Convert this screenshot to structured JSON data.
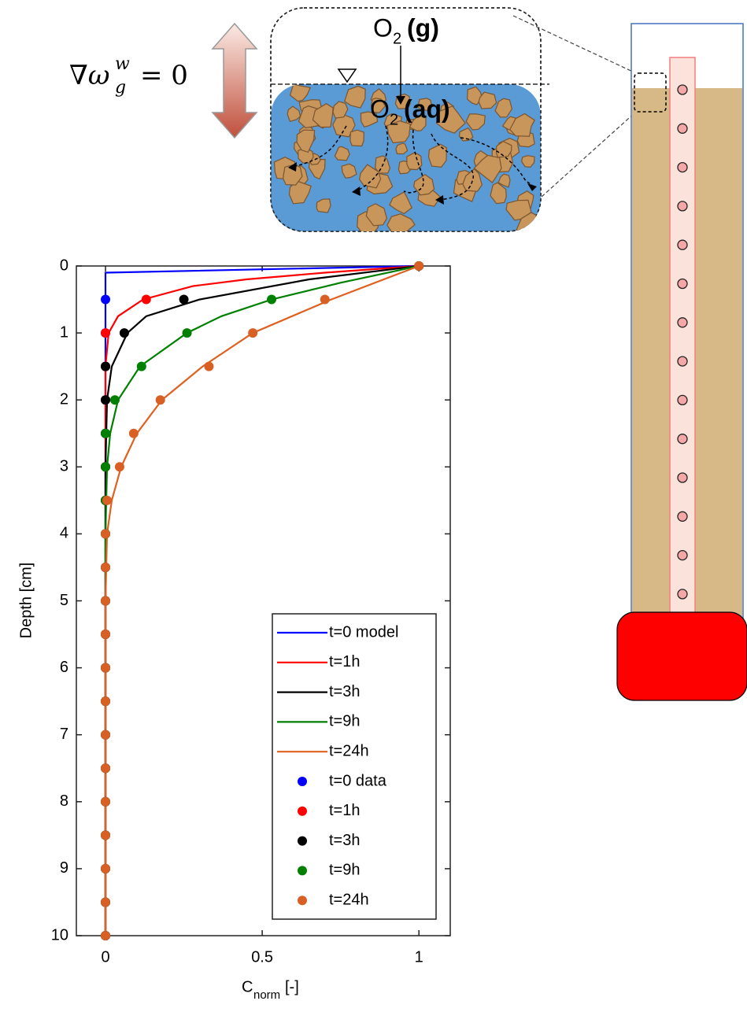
{
  "diagram": {
    "gas_label": {
      "base": "O",
      "sub": "2",
      "tail": "(g)"
    },
    "aq_label": {
      "base": "O",
      "sub": "2",
      "tail": "(aq)"
    },
    "equation": {
      "base": "∇ω",
      "sub": "g",
      "sup": "w",
      "tail": "= 0"
    }
  },
  "chart_data": {
    "type": "line",
    "ylabel": "Depth [cm]",
    "xlabel": {
      "base": "C",
      "sub": "norm",
      "tail": "[-]"
    },
    "xlim": [
      -0.093,
      1.1
    ],
    "xticks": [
      0,
      0.5,
      1
    ],
    "ylim": [
      0,
      10
    ],
    "yticks": [
      0,
      1,
      2,
      3,
      4,
      5,
      6,
      7,
      8,
      9,
      10
    ],
    "y_inverted": true,
    "grid": false,
    "legend": "lower-right",
    "series": [
      {
        "name": "t=0 model",
        "color": "#0000ff",
        "kind": "line",
        "x": [
          1,
          0,
          0
        ],
        "y": [
          0,
          0.1,
          10
        ]
      },
      {
        "name": "t=1h",
        "color": "#ff0000",
        "kind": "line",
        "x": [
          1,
          0.7,
          0.45,
          0.28,
          0.12,
          0.04,
          0.01,
          0,
          0
        ],
        "y": [
          0,
          0.1,
          0.2,
          0.3,
          0.5,
          0.75,
          1,
          1.5,
          10
        ]
      },
      {
        "name": "t=3h",
        "color": "#000000",
        "kind": "line",
        "x": [
          1,
          0.65,
          0.3,
          0.13,
          0.07,
          0.02,
          0.005,
          0,
          0
        ],
        "y": [
          0,
          0.2,
          0.5,
          0.75,
          1,
          1.5,
          2,
          3,
          10
        ]
      },
      {
        "name": "t=9h",
        "color": "#008000",
        "kind": "line",
        "x": [
          1,
          0.75,
          0.53,
          0.37,
          0.26,
          0.11,
          0.04,
          0.015,
          0.005,
          0,
          0
        ],
        "y": [
          0,
          0.25,
          0.5,
          0.75,
          1,
          1.5,
          2,
          2.5,
          3,
          4,
          10
        ]
      },
      {
        "name": "t=24h",
        "color": "#e06020",
        "kind": "line",
        "x": [
          1,
          0.72,
          0.47,
          0.31,
          0.18,
          0.1,
          0.05,
          0.02,
          0.005,
          0,
          0
        ],
        "y": [
          0,
          0.5,
          1,
          1.5,
          2,
          2.5,
          3,
          3.5,
          4,
          5,
          10
        ]
      },
      {
        "name": "t=0 data",
        "color": "#0000ff",
        "kind": "marker",
        "x": [
          0,
          0,
          0,
          0,
          0,
          0,
          0,
          0,
          0,
          0,
          0,
          0,
          0,
          0,
          0,
          0,
          0,
          0,
          0,
          0
        ],
        "y": [
          0.5,
          1,
          1.5,
          2,
          2.5,
          3,
          3.5,
          4,
          4.5,
          5,
          5.5,
          6,
          6.5,
          7,
          7.5,
          8,
          8.5,
          9,
          9.5,
          10
        ]
      },
      {
        "name": "t=1h",
        "color": "#ff0000",
        "kind": "marker",
        "x": [
          1,
          0.13,
          0,
          0,
          0,
          0,
          0,
          0,
          0,
          0,
          0,
          0,
          0,
          0,
          0,
          0,
          0,
          0,
          0,
          0,
          0
        ],
        "y": [
          0,
          0.5,
          1,
          1.5,
          2,
          2.5,
          3,
          3.5,
          4,
          4.5,
          5,
          5.5,
          6,
          6.5,
          7,
          7.5,
          8,
          8.5,
          9,
          9.5,
          10
        ]
      },
      {
        "name": "t=3h",
        "color": "#000000",
        "kind": "marker",
        "x": [
          1,
          0.25,
          0.06,
          0,
          0,
          0,
          0,
          0,
          0,
          0,
          0,
          0,
          0,
          0,
          0,
          0,
          0,
          0,
          0,
          0,
          0
        ],
        "y": [
          0,
          0.5,
          1,
          1.5,
          2,
          2.5,
          3,
          3.5,
          4,
          4.5,
          5,
          5.5,
          6,
          6.5,
          7,
          7.5,
          8,
          8.5,
          9,
          9.5,
          10
        ]
      },
      {
        "name": "t=9h",
        "color": "#008000",
        "kind": "marker",
        "x": [
          1,
          0.53,
          0.26,
          0.115,
          0.03,
          0,
          0,
          0,
          0,
          0,
          0,
          0,
          0,
          0,
          0,
          0,
          0,
          0,
          0,
          0,
          0
        ],
        "y": [
          0,
          0.5,
          1,
          1.5,
          2,
          2.5,
          3,
          3.5,
          4,
          4.5,
          5,
          5.5,
          6,
          6.5,
          7,
          7.5,
          8,
          8.5,
          9,
          9.5,
          10
        ]
      },
      {
        "name": "t=24h",
        "color": "#d96025",
        "kind": "marker",
        "x": [
          1,
          0.7,
          0.47,
          0.33,
          0.175,
          0.09,
          0.045,
          0.005,
          0,
          0,
          0,
          0,
          0,
          0,
          0,
          0,
          0,
          0,
          0,
          0,
          0
        ],
        "y": [
          0,
          0.5,
          1,
          1.5,
          2,
          2.5,
          3,
          3.5,
          4,
          4.5,
          5,
          5.5,
          6,
          6.5,
          7,
          7.5,
          8,
          8.5,
          9,
          9.5,
          10
        ]
      }
    ]
  }
}
